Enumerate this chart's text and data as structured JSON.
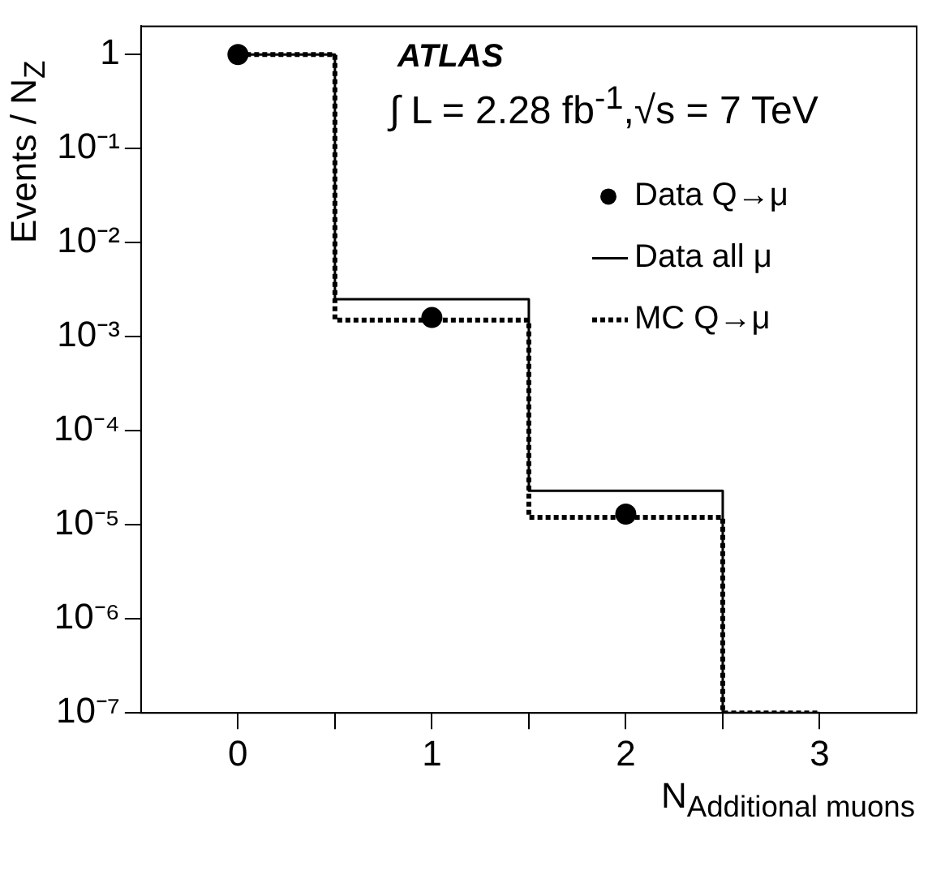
{
  "chart_data": {
    "type": "step",
    "x": [
      0,
      1,
      2,
      3
    ],
    "xlabel": "N$_{Additional muons}$",
    "ylabel": "Events / N$_{Z}$",
    "annotations": [
      "ATLAS",
      "∫ L = 2.28 fb$^{-1}$,√s = 7 TeV"
    ],
    "xlim": [
      -0.5,
      3.5
    ],
    "xticks": [
      {
        "value": 0,
        "label": "0"
      },
      {
        "value": 0.5,
        "label": null
      },
      {
        "value": 1,
        "label": "1"
      },
      {
        "value": 1.5,
        "label": null
      },
      {
        "value": 2,
        "label": "2"
      },
      {
        "value": 2.5,
        "label": null
      },
      {
        "value": 3,
        "label": "3"
      }
    ],
    "ylim": [
      1e-07,
      2
    ],
    "yticks": [
      {
        "value": 1,
        "label": "1"
      },
      {
        "value": 0.1,
        "label": "10⁻¹"
      },
      {
        "value": 0.01,
        "label": "10⁻²"
      },
      {
        "value": 0.001,
        "label": "10⁻³"
      },
      {
        "value": 0.0001,
        "label": "10⁻⁴"
      },
      {
        "value": 1e-05,
        "label": "10⁻⁵"
      },
      {
        "value": 1e-06,
        "label": "10⁻⁶"
      },
      {
        "value": 1e-07,
        "label": "10⁻⁷"
      }
    ],
    "log": "y",
    "grid": false,
    "legend": "top right",
    "series": [
      {
        "name": "Data Q→μ",
        "type": "scatter",
        "color": "#000000",
        "marker": "circle",
        "x": [
          0,
          1,
          2
        ],
        "values": [
          1,
          0.0016,
          1.3e-05
        ]
      },
      {
        "name": "Data all μ",
        "color": "#000000",
        "line_style": "solid",
        "values": [
          1,
          0.0025,
          2.3e-05,
          1e-07
        ]
      },
      {
        "name": "MC Q→μ",
        "color": "#000000",
        "line_style": "dotted",
        "values": [
          1,
          0.0015,
          1.2e-05,
          1e-07
        ]
      }
    ]
  }
}
